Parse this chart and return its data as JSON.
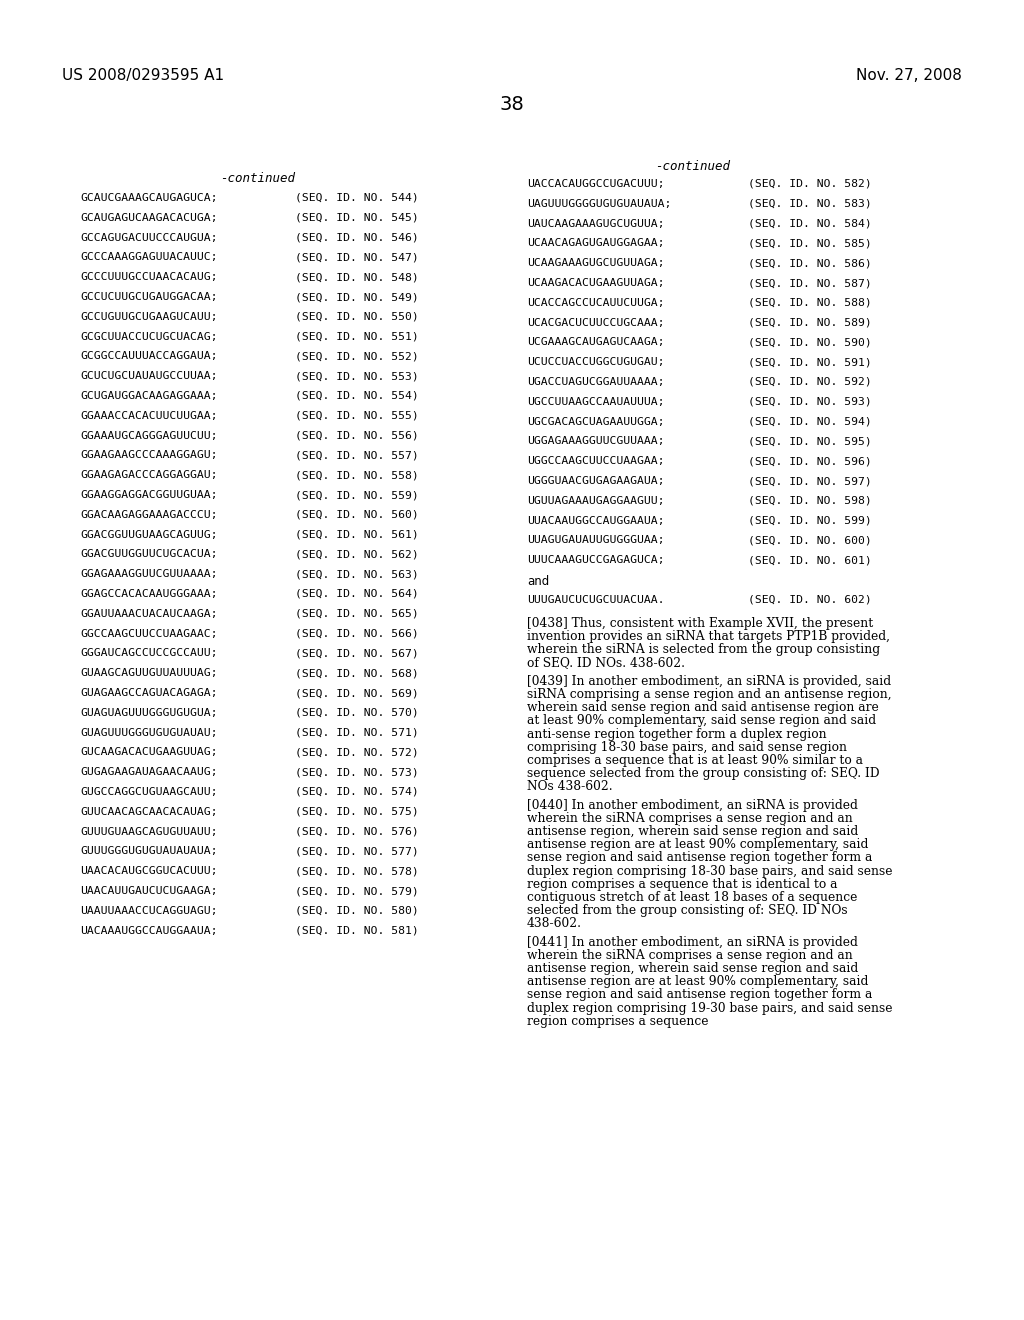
{
  "background_color": "#ffffff",
  "page_number": "38",
  "header_left": "US 2008/0293595 A1",
  "header_right": "Nov. 27, 2008",
  "continued_label": "-continued",
  "left_column": [
    [
      "GCAUCGAAAGCAUGAGUCA;",
      "(SEQ. ID. NO. 544)"
    ],
    [
      "GCAUGAGUCAAGACACUGA;",
      "(SEQ. ID. NO. 545)"
    ],
    [
      "GCCAGUGACUUCCCAUGUA;",
      "(SEQ. ID. NO. 546)"
    ],
    [
      "GCCCAAAGGAGUUACAUUC;",
      "(SEQ. ID. NO. 547)"
    ],
    [
      "GCCCUUUGCCUAACACAUG;",
      "(SEQ. ID. NO. 548)"
    ],
    [
      "GCCUCUUGCUGAUGGACAA;",
      "(SEQ. ID. NO. 549)"
    ],
    [
      "GCCUGUUGCUGAAGUCAUU;",
      "(SEQ. ID. NO. 550)"
    ],
    [
      "GCGCUUACCUCUGCUACAG;",
      "(SEQ. ID. NO. 551)"
    ],
    [
      "GCGGCCAUUUACCAGGAUA;",
      "(SEQ. ID. NO. 552)"
    ],
    [
      "GCUCUGCUAUAUGCCUUAA;",
      "(SEQ. ID. NO. 553)"
    ],
    [
      "GCUGAUGGACAAGAGGAAA;",
      "(SEQ. ID. NO. 554)"
    ],
    [
      "GGAAACCACACUUCUUGAA;",
      "(SEQ. ID. NO. 555)"
    ],
    [
      "GGAAAUGCAGGGAGUUCUU;",
      "(SEQ. ID. NO. 556)"
    ],
    [
      "GGAAGAAGCCCAAAGGAGU;",
      "(SEQ. ID. NO. 557)"
    ],
    [
      "GGAAGAGACCCAGGAGGAU;",
      "(SEQ. ID. NO. 558)"
    ],
    [
      "GGAAGGAGGACGGUUGUAA;",
      "(SEQ. ID. NO. 559)"
    ],
    [
      "GGACAAGAGGAAAGACCCU;",
      "(SEQ. ID. NO. 560)"
    ],
    [
      "GGACGGUUGUAAGCAGUUG;",
      "(SEQ. ID. NO. 561)"
    ],
    [
      "GGACGUUGGUUCUGCACUA;",
      "(SEQ. ID. NO. 562)"
    ],
    [
      "GGAGAAAGGUUCGUUAAAA;",
      "(SEQ. ID. NO. 563)"
    ],
    [
      "GGAGCCACACAAUGGGAAA;",
      "(SEQ. ID. NO. 564)"
    ],
    [
      "GGAUUAAACUACAUCAAGA;",
      "(SEQ. ID. NO. 565)"
    ],
    [
      "GGCCAAGCUUCCUAAGAAC;",
      "(SEQ. ID. NO. 566)"
    ],
    [
      "GGGAUCAGCCUCCGCCAUU;",
      "(SEQ. ID. NO. 567)"
    ],
    [
      "GUAAGCAGUUGUUAUUUAG;",
      "(SEQ. ID. NO. 568)"
    ],
    [
      "GUAGAAGCCAGUACAGAGA;",
      "(SEQ. ID. NO. 569)"
    ],
    [
      "GUAGUAGUUUGGGUGUGUA;",
      "(SEQ. ID. NO. 570)"
    ],
    [
      "GUAGUUUGGGUGUGUAUAU;",
      "(SEQ. ID. NO. 571)"
    ],
    [
      "GUCAAGACACUGAAGUUAG;",
      "(SEQ. ID. NO. 572)"
    ],
    [
      "GUGAGAAGAUAGAACAAUG;",
      "(SEQ. ID. NO. 573)"
    ],
    [
      "GUGCCAGGCUGUAAGCAUU;",
      "(SEQ. ID. NO. 574)"
    ],
    [
      "GUUCAACAGCAACACAUAG;",
      "(SEQ. ID. NO. 575)"
    ],
    [
      "GUUUGUAAGCAGUGUUAUU;",
      "(SEQ. ID. NO. 576)"
    ],
    [
      "GUUUGGGUGUGUAUAUAUA;",
      "(SEQ. ID. NO. 577)"
    ],
    [
      "UAACACAUGCGGUCACUUU;",
      "(SEQ. ID. NO. 578)"
    ],
    [
      "UAACAUUGAUCUCUGAAGA;",
      "(SEQ. ID. NO. 579)"
    ],
    [
      "UAAUUAAACCUCAGGUAGU;",
      "(SEQ. ID. NO. 580)"
    ],
    [
      "UACAAAUGGCCAUGGAAUA;",
      "(SEQ. ID. NO. 581)"
    ]
  ],
  "right_column": [
    [
      "UACCACAUGGCCUGACUUU;",
      "(SEQ. ID. NO. 582)"
    ],
    [
      "UAGUUUGGGGUGUGUAUAUA;",
      "(SEQ. ID. NO. 583)"
    ],
    [
      "UAUCAAGAAAGUGCUGUUA;",
      "(SEQ. ID. NO. 584)"
    ],
    [
      "UCAACAGAGUGAUGGAGAA;",
      "(SEQ. ID. NO. 585)"
    ],
    [
      "UCAAGAAAGUGCUGUUAGA;",
      "(SEQ. ID. NO. 586)"
    ],
    [
      "UCAAGACACUGAAGUUAGA;",
      "(SEQ. ID. NO. 587)"
    ],
    [
      "UCACCAGCCUCAUUCUUGA;",
      "(SEQ. ID. NO. 588)"
    ],
    [
      "UCACGACUCUUCCUGCAAA;",
      "(SEQ. ID. NO. 589)"
    ],
    [
      "UCGAAAGCAUGAGUCAAGA;",
      "(SEQ. ID. NO. 590)"
    ],
    [
      "UCUCCUACCUGGCUGUGAU;",
      "(SEQ. ID. NO. 591)"
    ],
    [
      "UGACCUAGUCGGAUUAAAA;",
      "(SEQ. ID. NO. 592)"
    ],
    [
      "UGCCUUAAGCCAAUAUUUA;",
      "(SEQ. ID. NO. 593)"
    ],
    [
      "UGCGACAGCUAGAAUUGGA;",
      "(SEQ. ID. NO. 594)"
    ],
    [
      "UGGAGAAAGGUUCGUUAAA;",
      "(SEQ. ID. NO. 595)"
    ],
    [
      "UGGCCAAGCUUCCUAAGAA;",
      "(SEQ. ID. NO. 596)"
    ],
    [
      "UGGGUAACGUGAGAAGAUA;",
      "(SEQ. ID. NO. 597)"
    ],
    [
      "UGUUAGAAAUGAGGAAGUU;",
      "(SEQ. ID. NO. 598)"
    ],
    [
      "UUACAAUGGCCAUGGAAUA;",
      "(SEQ. ID. NO. 599)"
    ],
    [
      "UUAGUGAUAUUGUGGGUAA;",
      "(SEQ. ID. NO. 600)"
    ],
    [
      "UUUCAAAGUCCGAGAGUCA;",
      "(SEQ. ID. NO. 601)"
    ],
    [
      "and",
      ""
    ],
    [
      "UUUGAUCUCUGCUUACUAA.",
      "(SEQ. ID. NO. 602)"
    ]
  ],
  "paragraph_0438": "[0438]  Thus, consistent with Example XVII, the present invention provides an siRNA that targets PTP1B provided, wherein the siRNA is selected from the group consisting of SEQ. ID NOs. 438-602.",
  "paragraph_0439": "[0439]  In another embodiment, an siRNA is provided, said siRNA comprising a sense region and an antisense region, wherein said sense region and said antisense region are at least 90% complementary, said sense region and said anti-sense region together form a duplex region comprising 18-30 base pairs, and said sense region comprises a sequence that is at least 90% similar to a sequence selected from the group consisting of: SEQ. ID NOs 438-602.",
  "paragraph_0440": "[0440]  In another embodiment, an siRNA is provided wherein the siRNA comprises a sense region and an antisense region, wherein said sense region and said antisense region are at least 90% complementary, said sense region and said antisense region together form a duplex region comprising 18-30 base pairs, and said sense region comprises a sequence that is identical to a contiguous stretch of at least 18 bases of a sequence selected from the group consisting of: SEQ. ID NOs 438-602.",
  "paragraph_0441": "[0441]  In another embodiment, an siRNA is provided wherein the siRNA comprises a sense region and an antisense region, wherein said sense region and said antisense region are at least 90% complementary, said sense region and said antisense region together form a duplex region comprising 19-30 base pairs, and said sense region comprises a sequence"
}
